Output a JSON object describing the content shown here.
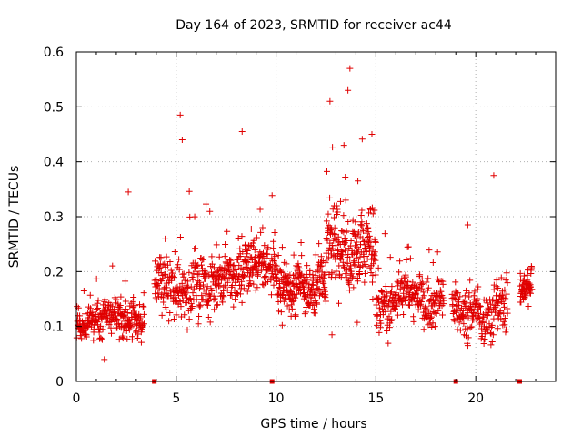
{
  "chart_data": {
    "type": "scatter",
    "title": "Day 164 of 2023, SRMTID for receiver ac44",
    "xlabel": "GPS time / hours",
    "ylabel": "SRMTID / TECUs",
    "xlim": [
      0,
      24
    ],
    "ylim": [
      0,
      0.6
    ],
    "xticks": [
      0,
      5,
      10,
      15,
      20
    ],
    "xtick_labels": [
      "0",
      "5",
      "10",
      "15",
      "20"
    ],
    "yticks": [
      0,
      0.1,
      0.2,
      0.3,
      0.4,
      0.5,
      0.6
    ],
    "ytick_labels": [
      "0",
      "0.1",
      "0.2",
      "0.3",
      "0.4",
      "0.5",
      "0.6"
    ],
    "grid": true,
    "marker": "plus",
    "color": "#e00000",
    "series": [
      {
        "name": "SRMTID",
        "segments": [
          {
            "t0": 0.0,
            "t1": 3.4,
            "n": 260,
            "mean": 0.115,
            "spread": 0.035
          },
          {
            "t0": 3.9,
            "t1": 6.8,
            "n": 220,
            "mean": 0.17,
            "spread": 0.06
          },
          {
            "t0": 6.8,
            "t1": 10.0,
            "n": 260,
            "mean": 0.2,
            "spread": 0.055
          },
          {
            "t0": 10.0,
            "t1": 12.5,
            "n": 220,
            "mean": 0.18,
            "spread": 0.05
          },
          {
            "t0": 12.5,
            "t1": 15.0,
            "n": 230,
            "mean": 0.24,
            "spread": 0.08
          },
          {
            "t0": 15.0,
            "t1": 18.4,
            "n": 240,
            "mean": 0.15,
            "spread": 0.05
          },
          {
            "t0": 18.8,
            "t1": 21.6,
            "n": 200,
            "mean": 0.13,
            "spread": 0.05
          },
          {
            "t0": 22.2,
            "t1": 22.8,
            "n": 60,
            "mean": 0.18,
            "spread": 0.04
          }
        ],
        "notable_points": [
          {
            "x": 13.7,
            "y": 0.57
          },
          {
            "x": 13.6,
            "y": 0.53
          },
          {
            "x": 12.7,
            "y": 0.51
          },
          {
            "x": 5.2,
            "y": 0.485
          },
          {
            "x": 8.3,
            "y": 0.455
          },
          {
            "x": 14.8,
            "y": 0.45
          },
          {
            "x": 5.3,
            "y": 0.44
          },
          {
            "x": 13.4,
            "y": 0.43
          },
          {
            "x": 2.6,
            "y": 0.345
          },
          {
            "x": 20.9,
            "y": 0.375
          },
          {
            "x": 19.6,
            "y": 0.285
          },
          {
            "x": 1.4,
            "y": 0.04
          },
          {
            "x": 12.8,
            "y": 0.085
          }
        ]
      }
    ],
    "baseline_markers_x": [
      3.9,
      9.8,
      19.0,
      22.2
    ]
  }
}
